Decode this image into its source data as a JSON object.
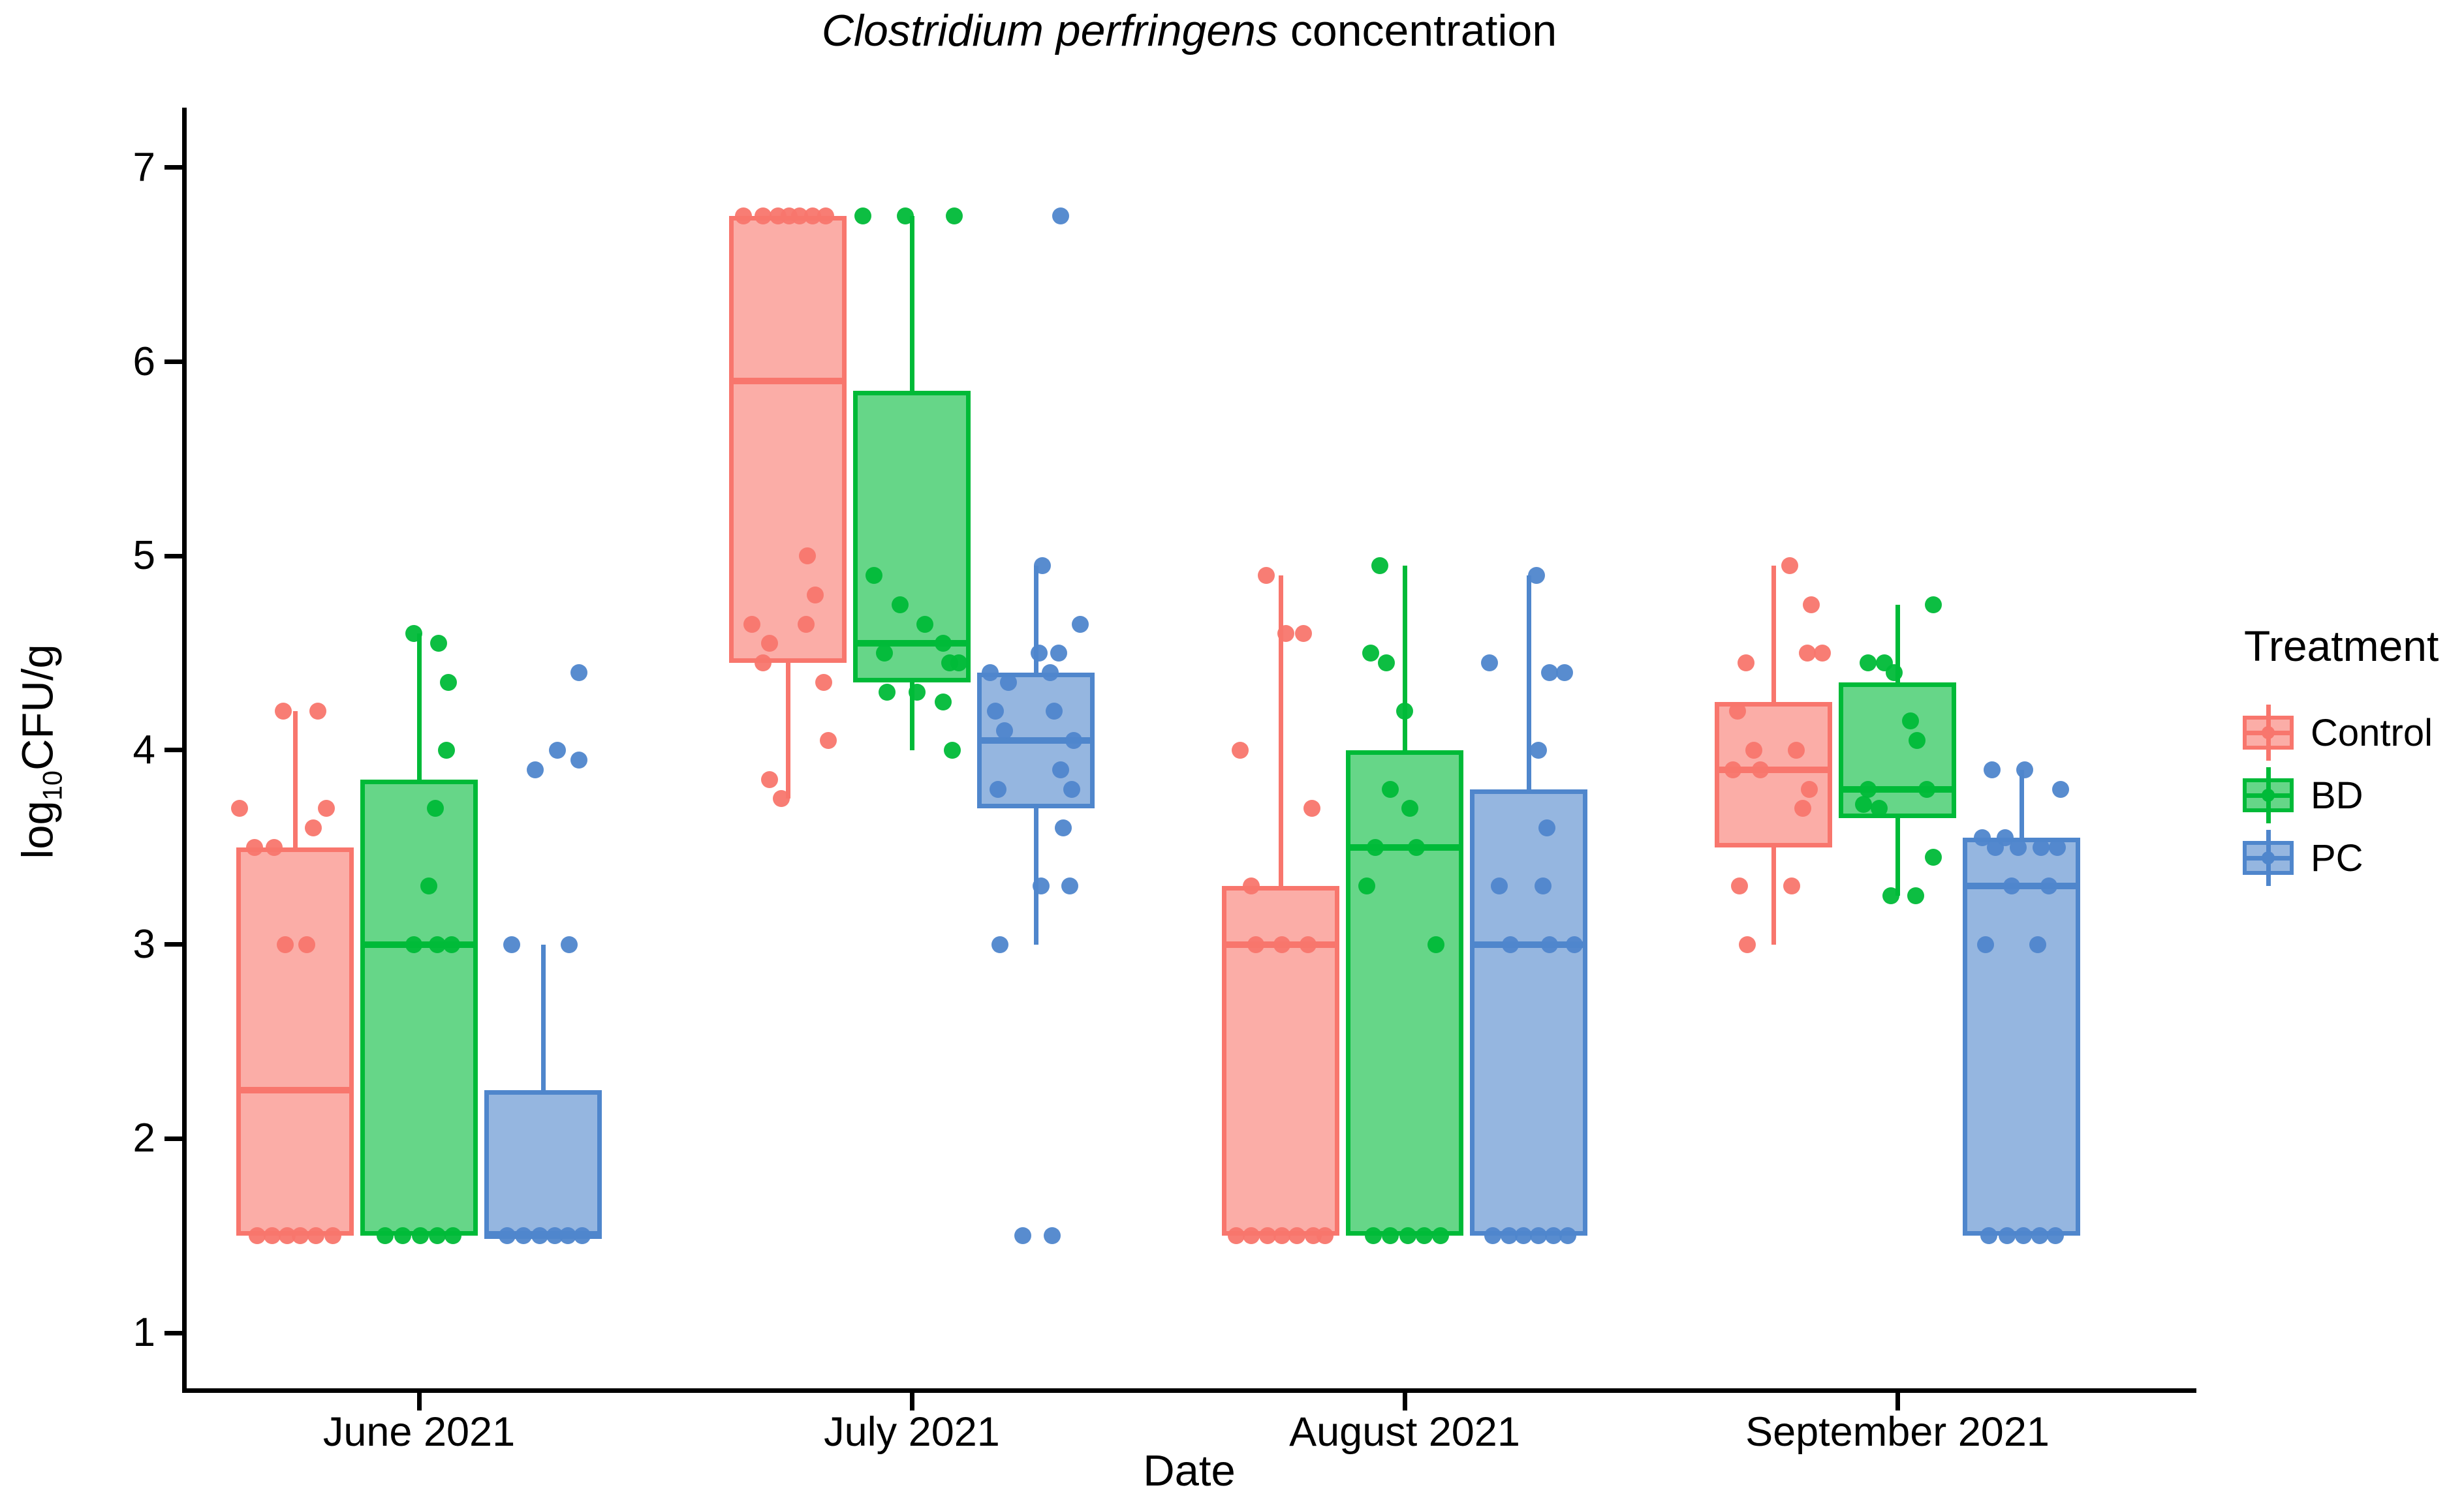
{
  "title": {
    "italic": "Clostridium perfringens",
    "rest": " concentration"
  },
  "axes": {
    "y": {
      "label_prefix": "log",
      "label_sub": "10",
      "label_suffix": "CFU/g",
      "ticks": [
        7,
        6,
        5,
        4,
        3,
        2,
        1
      ],
      "range": [
        1,
        7
      ]
    },
    "x": {
      "label": "Date",
      "categories": [
        "June 2021",
        "July 2021",
        "August 2021",
        "September 2021"
      ]
    }
  },
  "legend": {
    "title": "Treatment",
    "items": [
      {
        "label": "Control",
        "color": "#F8766D"
      },
      {
        "label": "BD",
        "color": "#00BA38"
      },
      {
        "label": "PC",
        "color": "#4F86CC"
      }
    ]
  },
  "chart_data": {
    "type": "boxplot-jitter",
    "title": "Clostridium perfringens concentration",
    "xlabel": "Date",
    "ylabel": "log10CFU/g",
    "ylim": [
      1,
      7
    ],
    "grid": false,
    "legend_position": "right",
    "categories": [
      "June 2021",
      "July 2021",
      "August 2021",
      "September 2021"
    ],
    "series": [
      {
        "name": "Control",
        "color": "#F8766D",
        "boxes": [
          {
            "whisker_low": 1.5,
            "q1": 1.5,
            "median": 2.25,
            "q3": 3.5,
            "whisker_high": 4.2,
            "points": [
              [
                -18,
                4.2
              ],
              [
                35,
                4.2
              ],
              [
                -85,
                3.7
              ],
              [
                48,
                3.7
              ],
              [
                28,
                3.6
              ],
              [
                -62,
                3.5
              ],
              [
                -32,
                3.5
              ],
              [
                -15,
                3.0
              ],
              [
                18,
                3.0
              ],
              [
                -58,
                1.5
              ],
              [
                -35,
                1.5
              ],
              [
                -12,
                1.5
              ],
              [
                8,
                1.5
              ],
              [
                32,
                1.5
              ],
              [
                58,
                1.5
              ]
            ]
          },
          {
            "whisker_low": 3.75,
            "q1": 4.45,
            "median": 5.9,
            "q3": 6.75,
            "whisker_high": 6.75,
            "points": [
              [
                -68,
                6.75
              ],
              [
                -38,
                6.75
              ],
              [
                -15,
                6.75
              ],
              [
                2,
                6.75
              ],
              [
                18,
                6.75
              ],
              [
                38,
                6.75
              ],
              [
                58,
                6.75
              ],
              [
                30,
                5.0
              ],
              [
                42,
                4.8
              ],
              [
                -55,
                4.65
              ],
              [
                28,
                4.65
              ],
              [
                -28,
                4.55
              ],
              [
                -38,
                4.45
              ],
              [
                55,
                4.35
              ],
              [
                62,
                4.05
              ],
              [
                -28,
                3.85
              ],
              [
                -10,
                3.75
              ]
            ]
          },
          {
            "whisker_low": 1.5,
            "q1": 1.5,
            "median": 3.0,
            "q3": 3.3,
            "whisker_high": 4.9,
            "points": [
              [
                -22,
                4.9
              ],
              [
                8,
                4.6
              ],
              [
                35,
                4.6
              ],
              [
                -62,
                4.0
              ],
              [
                48,
                3.7
              ],
              [
                -45,
                3.3
              ],
              [
                -38,
                3.0
              ],
              [
                2,
                3.0
              ],
              [
                42,
                3.0
              ],
              [
                -68,
                1.5
              ],
              [
                -45,
                1.5
              ],
              [
                -20,
                1.5
              ],
              [
                2,
                1.5
              ],
              [
                25,
                1.5
              ],
              [
                50,
                1.5
              ],
              [
                68,
                1.5
              ]
            ]
          },
          {
            "whisker_low": 3.0,
            "q1": 3.5,
            "median": 3.9,
            "q3": 4.25,
            "whisker_high": 4.95,
            "points": [
              [
                25,
                4.95
              ],
              [
                58,
                4.75
              ],
              [
                52,
                4.5
              ],
              [
                75,
                4.5
              ],
              [
                -42,
                4.45
              ],
              [
                -55,
                4.2
              ],
              [
                -30,
                4.0
              ],
              [
                35,
                4.0
              ],
              [
                -62,
                3.9
              ],
              [
                -20,
                3.9
              ],
              [
                55,
                3.8
              ],
              [
                45,
                3.7
              ],
              [
                -52,
                3.3
              ],
              [
                28,
                3.3
              ],
              [
                -40,
                3.0
              ]
            ]
          }
        ]
      },
      {
        "name": "BD",
        "color": "#00BA38",
        "boxes": [
          {
            "whisker_low": 1.5,
            "q1": 1.5,
            "median": 3.0,
            "q3": 3.85,
            "whisker_high": 4.6,
            "points": [
              [
                -8,
                4.6
              ],
              [
                30,
                4.55
              ],
              [
                45,
                4.35
              ],
              [
                42,
                4.0
              ],
              [
                25,
                3.7
              ],
              [
                15,
                3.3
              ],
              [
                -8,
                3.0
              ],
              [
                28,
                3.0
              ],
              [
                50,
                3.0
              ],
              [
                -52,
                1.5
              ],
              [
                -25,
                1.5
              ],
              [
                2,
                1.5
              ],
              [
                28,
                1.5
              ],
              [
                52,
                1.5
              ]
            ]
          },
          {
            "whisker_low": 4.0,
            "q1": 4.35,
            "median": 4.55,
            "q3": 5.85,
            "whisker_high": 6.75,
            "points": [
              [
                -75,
                6.75
              ],
              [
                -10,
                6.75
              ],
              [
                65,
                6.75
              ],
              [
                -58,
                4.9
              ],
              [
                -18,
                4.75
              ],
              [
                20,
                4.65
              ],
              [
                48,
                4.55
              ],
              [
                -42,
                4.5
              ],
              [
                58,
                4.45
              ],
              [
                72,
                4.45
              ],
              [
                -38,
                4.3
              ],
              [
                8,
                4.3
              ],
              [
                48,
                4.25
              ],
              [
                62,
                4.0
              ]
            ]
          },
          {
            "whisker_low": 1.5,
            "q1": 1.5,
            "median": 3.5,
            "q3": 4.0,
            "whisker_high": 4.95,
            "points": [
              [
                -38,
                4.95
              ],
              [
                -52,
                4.5
              ],
              [
                -28,
                4.45
              ],
              [
                0,
                4.2
              ],
              [
                -22,
                3.8
              ],
              [
                8,
                3.7
              ],
              [
                -45,
                3.5
              ],
              [
                18,
                3.5
              ],
              [
                -58,
                3.3
              ],
              [
                48,
                3.0
              ],
              [
                -48,
                1.5
              ],
              [
                -22,
                1.5
              ],
              [
                5,
                1.5
              ],
              [
                30,
                1.5
              ],
              [
                55,
                1.5
              ]
            ]
          },
          {
            "whisker_low": 3.25,
            "q1": 3.65,
            "median": 3.8,
            "q3": 4.35,
            "whisker_high": 4.75,
            "points": [
              [
                55,
                4.75
              ],
              [
                -45,
                4.45
              ],
              [
                -20,
                4.45
              ],
              [
                -5,
                4.4
              ],
              [
                20,
                4.15
              ],
              [
                30,
                4.05
              ],
              [
                -45,
                3.8
              ],
              [
                45,
                3.8
              ],
              [
                -52,
                3.72
              ],
              [
                -28,
                3.7
              ],
              [
                55,
                3.45
              ],
              [
                -10,
                3.25
              ],
              [
                28,
                3.25
              ]
            ]
          }
        ]
      },
      {
        "name": "PC",
        "color": "#4F86CC",
        "boxes": [
          {
            "whisker_low": 1.5,
            "q1": 1.5,
            "median": 1.5,
            "q3": 2.25,
            "whisker_high": 3.0,
            "points": [
              [
                55,
                4.4
              ],
              [
                22,
                4.0
              ],
              [
                55,
                3.95
              ],
              [
                -12,
                3.9
              ],
              [
                -48,
                3.0
              ],
              [
                40,
                3.0
              ],
              [
                -55,
                1.5
              ],
              [
                -30,
                1.5
              ],
              [
                -5,
                1.5
              ],
              [
                18,
                1.5
              ],
              [
                38,
                1.5
              ],
              [
                60,
                1.5
              ]
            ]
          },
          {
            "whisker_low": 3.0,
            "q1": 3.7,
            "median": 4.05,
            "q3": 4.4,
            "whisker_high": 4.95,
            "points": [
              [
                38,
                6.75
              ],
              [
                10,
                4.95
              ],
              [
                68,
                4.65
              ],
              [
                35,
                4.5
              ],
              [
                5,
                4.5
              ],
              [
                -70,
                4.4
              ],
              [
                22,
                4.4
              ],
              [
                -42,
                4.35
              ],
              [
                -62,
                4.2
              ],
              [
                28,
                4.2
              ],
              [
                -48,
                4.1
              ],
              [
                58,
                4.05
              ],
              [
                38,
                3.9
              ],
              [
                -58,
                3.8
              ],
              [
                55,
                3.8
              ],
              [
                42,
                3.6
              ],
              [
                8,
                3.3
              ],
              [
                52,
                3.3
              ],
              [
                -55,
                3.0
              ],
              [
                -20,
                1.5
              ],
              [
                25,
                1.5
              ]
            ]
          },
          {
            "whisker_low": 1.5,
            "q1": 1.5,
            "median": 3.0,
            "q3": 3.8,
            "whisker_high": 4.9,
            "points": [
              [
                12,
                4.9
              ],
              [
                -60,
                4.45
              ],
              [
                32,
                4.4
              ],
              [
                55,
                4.4
              ],
              [
                15,
                4.0
              ],
              [
                28,
                3.6
              ],
              [
                -45,
                3.3
              ],
              [
                22,
                3.3
              ],
              [
                -28,
                3.0
              ],
              [
                32,
                3.0
              ],
              [
                70,
                3.0
              ],
              [
                -55,
                1.5
              ],
              [
                -30,
                1.5
              ],
              [
                -8,
                1.5
              ],
              [
                15,
                1.5
              ],
              [
                38,
                1.5
              ],
              [
                60,
                1.5
              ]
            ]
          },
          {
            "whisker_low": 1.5,
            "q1": 1.5,
            "median": 3.3,
            "q3": 3.55,
            "whisker_high": 3.9,
            "points": [
              [
                -45,
                3.9
              ],
              [
                5,
                3.9
              ],
              [
                60,
                3.8
              ],
              [
                -60,
                3.55
              ],
              [
                -25,
                3.55
              ],
              [
                -40,
                3.5
              ],
              [
                -5,
                3.5
              ],
              [
                30,
                3.5
              ],
              [
                55,
                3.5
              ],
              [
                -15,
                3.3
              ],
              [
                42,
                3.3
              ],
              [
                -55,
                3.0
              ],
              [
                25,
                3.0
              ],
              [
                -50,
                1.5
              ],
              [
                -22,
                1.5
              ],
              [
                3,
                1.5
              ],
              [
                28,
                1.5
              ],
              [
                52,
                1.5
              ]
            ]
          }
        ]
      }
    ]
  }
}
